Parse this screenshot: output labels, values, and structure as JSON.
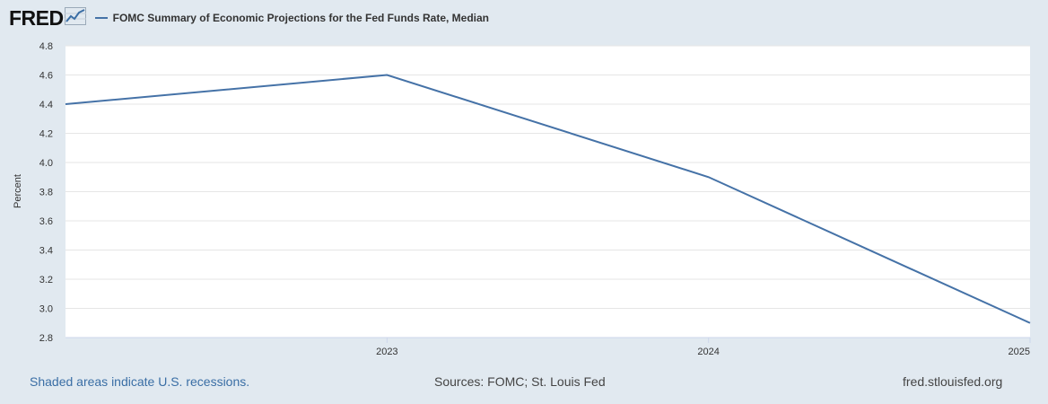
{
  "header": {
    "logo": "FRED",
    "logo_icon": "fred-chart-logo-icon",
    "series_label": "FOMC Summary of Economic Projections for the Fed Funds Rate, Median"
  },
  "colors": {
    "background": "#e1e9f0",
    "plot_background": "#ffffff",
    "series_line": "#4572a7",
    "gridline": "#e6e6e6",
    "link": "#3a6ea5"
  },
  "chart_data": {
    "type": "line",
    "ylabel": "Percent",
    "xlabel": "",
    "x": [
      2022,
      2023,
      2024,
      2025
    ],
    "x_tick_labels": [
      "2023",
      "2024",
      "2025"
    ],
    "x_tick_values": [
      2023,
      2024,
      2025
    ],
    "series": [
      {
        "name": "FOMC Summary of Economic Projections for the Fed Funds Rate, Median",
        "values": [
          4.4,
          4.6,
          3.9,
          2.9
        ]
      }
    ],
    "ylim": [
      2.8,
      4.8
    ],
    "y_ticks": [
      "2.8",
      "3.0",
      "3.2",
      "3.4",
      "3.6",
      "3.8",
      "4.0",
      "4.2",
      "4.4",
      "4.6",
      "4.8"
    ],
    "grid": true,
    "legend_placement": "top-left"
  },
  "footer": {
    "recession_note": "Shaded areas indicate U.S. recessions.",
    "sources": "Sources: FOMC; St. Louis Fed",
    "site": "fred.stlouisfed.org"
  }
}
